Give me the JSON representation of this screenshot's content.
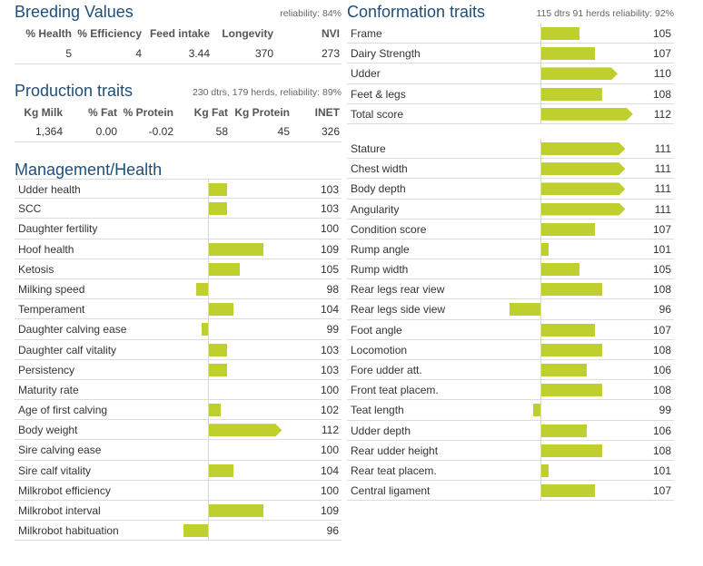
{
  "breeding": {
    "title": "Breeding Values",
    "note": "reliability: 84%",
    "headers": [
      "% Health",
      "% Efficiency",
      "Feed intake",
      "Longevity",
      "NVI"
    ],
    "values": [
      "5",
      "4",
      "3.44",
      "370",
      "273"
    ]
  },
  "production": {
    "title": "Production traits",
    "note": "230 dtrs, 179 herds, reliability: 89%",
    "headers": [
      "Kg Milk",
      "% Fat",
      "% Protein",
      "Kg Fat",
      "Kg Protein",
      "INET"
    ],
    "values": [
      "1,364",
      "0.00",
      "-0.02",
      "58",
      "45",
      "326"
    ]
  },
  "management": {
    "title": "Management/Health",
    "traits": [
      {
        "label": "Udder health",
        "value": 103
      },
      {
        "label": "SCC",
        "value": 103
      },
      {
        "label": "Daughter fertility",
        "value": 100
      },
      {
        "label": "Hoof health",
        "value": 109
      },
      {
        "label": "Ketosis",
        "value": 105
      },
      {
        "label": "Milking speed",
        "value": 98
      },
      {
        "label": "Temperament",
        "value": 104
      },
      {
        "label": "Daughter calving ease",
        "value": 99
      },
      {
        "label": "Daughter calf vitality",
        "value": 103
      },
      {
        "label": "Persistency",
        "value": 103
      },
      {
        "label": "Maturity rate",
        "value": 100
      },
      {
        "label": "Age of first calving",
        "value": 102
      },
      {
        "label": "Body weight",
        "value": 112
      },
      {
        "label": "Sire calving ease",
        "value": 100
      },
      {
        "label": "Sire calf vitality",
        "value": 104
      },
      {
        "label": "Milkrobot efficiency",
        "value": 100
      },
      {
        "label": "Milkrobot interval",
        "value": 109
      },
      {
        "label": "Milkrobot habituation",
        "value": 96
      }
    ]
  },
  "conformation": {
    "title": "Conformation traits",
    "note": "115 dtrs 91 herds reliability: 92%",
    "group1": [
      {
        "label": "Frame",
        "value": 105
      },
      {
        "label": "Dairy Strength",
        "value": 107
      },
      {
        "label": "Udder",
        "value": 110
      },
      {
        "label": "Feet & legs",
        "value": 108
      },
      {
        "label": "Total score",
        "value": 112
      }
    ],
    "group2": [
      {
        "label": "Stature",
        "value": 111
      },
      {
        "label": "Chest width",
        "value": 111
      },
      {
        "label": "Body depth",
        "value": 111
      },
      {
        "label": "Angularity",
        "value": 111
      },
      {
        "label": "Condition score",
        "value": 107
      },
      {
        "label": "Rump angle",
        "value": 101
      },
      {
        "label": "Rump width",
        "value": 105
      },
      {
        "label": "Rear legs rear view",
        "value": 108
      },
      {
        "label": "Rear legs side view",
        "value": 96
      },
      {
        "label": "Foot angle",
        "value": 107
      },
      {
        "label": "Locomotion",
        "value": 108
      },
      {
        "label": "Fore udder att.",
        "value": 106
      },
      {
        "label": "Front teat placem.",
        "value": 108
      },
      {
        "label": "Teat length",
        "value": 99
      },
      {
        "label": "Udder depth",
        "value": 106
      },
      {
        "label": "Rear udder height",
        "value": 108
      },
      {
        "label": "Rear teat placem.",
        "value": 101
      },
      {
        "label": "Central ligament",
        "value": 107
      }
    ]
  },
  "colors": {
    "bar": "#bfd02e",
    "title": "#1f4e79"
  },
  "chart_data": [
    {
      "type": "bar",
      "title": "Management/Health",
      "categories": [
        "Udder health",
        "SCC",
        "Daughter fertility",
        "Hoof health",
        "Ketosis",
        "Milking speed",
        "Temperament",
        "Daughter calving ease",
        "Daughter calf vitality",
        "Persistency",
        "Maturity rate",
        "Age of first calving",
        "Body weight",
        "Sire calving ease",
        "Sire calf vitality",
        "Milkrobot efficiency",
        "Milkrobot interval",
        "Milkrobot habituation"
      ],
      "values": [
        103,
        103,
        100,
        109,
        105,
        98,
        104,
        99,
        103,
        103,
        100,
        102,
        112,
        100,
        104,
        100,
        109,
        96
      ],
      "baseline": 100,
      "orientation": "horizontal"
    },
    {
      "type": "bar",
      "title": "Conformation traits",
      "categories": [
        "Frame",
        "Dairy Strength",
        "Udder",
        "Feet & legs",
        "Total score",
        "Stature",
        "Chest width",
        "Body depth",
        "Angularity",
        "Condition score",
        "Rump angle",
        "Rump width",
        "Rear legs rear view",
        "Rear legs side view",
        "Foot angle",
        "Locomotion",
        "Fore udder att.",
        "Front teat placem.",
        "Teat length",
        "Udder depth",
        "Rear udder height",
        "Rear teat placem.",
        "Central ligament"
      ],
      "values": [
        105,
        107,
        110,
        108,
        112,
        111,
        111,
        111,
        111,
        107,
        101,
        105,
        108,
        96,
        107,
        108,
        106,
        108,
        99,
        106,
        108,
        101,
        107
      ],
      "baseline": 100,
      "orientation": "horizontal"
    }
  ]
}
